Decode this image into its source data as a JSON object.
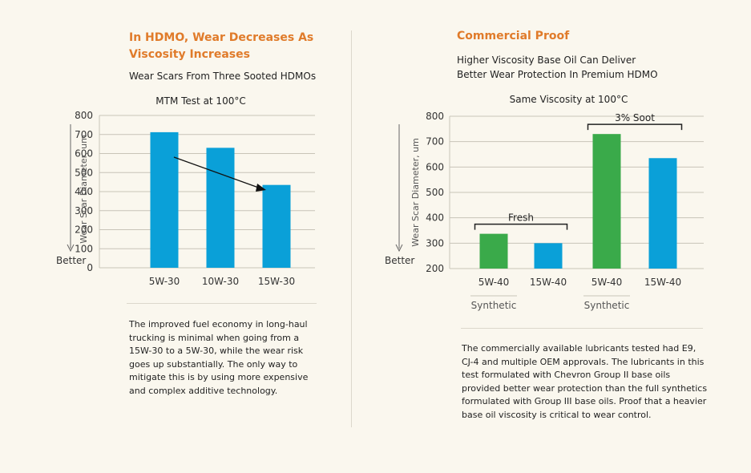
{
  "left": {
    "heading": "In HDMO, Wear Decreases As\nViscosity Increases",
    "subheading": "Wear Scars From Three Sooted HDMOs",
    "description": "The improved fuel economy in long-haul trucking is minimal when going from a 15W-30 to a 5W-30, while the wear risk goes up substantially. The only way to mitigate this is by using more expensive and complex additive technology."
  },
  "right": {
    "heading": "Commercial Proof",
    "subheading": "Higher Viscosity Base Oil Can Deliver\nBetter Wear Protection In Premium HDMO",
    "description": "The commercially available lubricants tested had E9, CJ-4 and multiple OEM approvals. The lubricants in this test formulated with Chevron Group II base oils provided better wear protection than the full synthetics formulated with Group III base oils. Proof that a heavier base oil viscosity is critical to wear control."
  },
  "colors": {
    "blue": "#0aa0d8",
    "green": "#3aaa4a",
    "orange": "#e07b2a",
    "grid": "#c8c4b8"
  },
  "chart_data": [
    {
      "type": "bar",
      "title": "MTM Test at 100°C",
      "ylabel": "Wear Scar Diameter, um",
      "axis_note": "Better",
      "categories": [
        "5W-30",
        "10W-30",
        "15W-30"
      ],
      "values": [
        712,
        630,
        435
      ],
      "bar_colors": [
        "blue",
        "blue",
        "blue"
      ],
      "ylim": [
        0,
        800
      ],
      "yticks": [
        0,
        100,
        200,
        300,
        400,
        500,
        600,
        700,
        800
      ],
      "grid": true
    },
    {
      "type": "bar",
      "title": "Same Viscosity at 100°C",
      "ylabel": "Wear Scar Diameter, um",
      "axis_note": "Better",
      "categories": [
        "5W-40",
        "15W-40",
        "5W-40",
        "15W-40"
      ],
      "category_notes": [
        "Synthetic",
        "",
        "Synthetic",
        ""
      ],
      "values": [
        337,
        300,
        730,
        635
      ],
      "bar_colors": [
        "green",
        "blue",
        "green",
        "blue"
      ],
      "ylim": [
        200,
        800
      ],
      "yticks": [
        200,
        300,
        400,
        500,
        600,
        700,
        800
      ],
      "grid": true,
      "groups": [
        {
          "label": "Fresh",
          "from": 0,
          "to": 1
        },
        {
          "label": "3% Soot",
          "from": 2,
          "to": 3
        }
      ]
    }
  ]
}
